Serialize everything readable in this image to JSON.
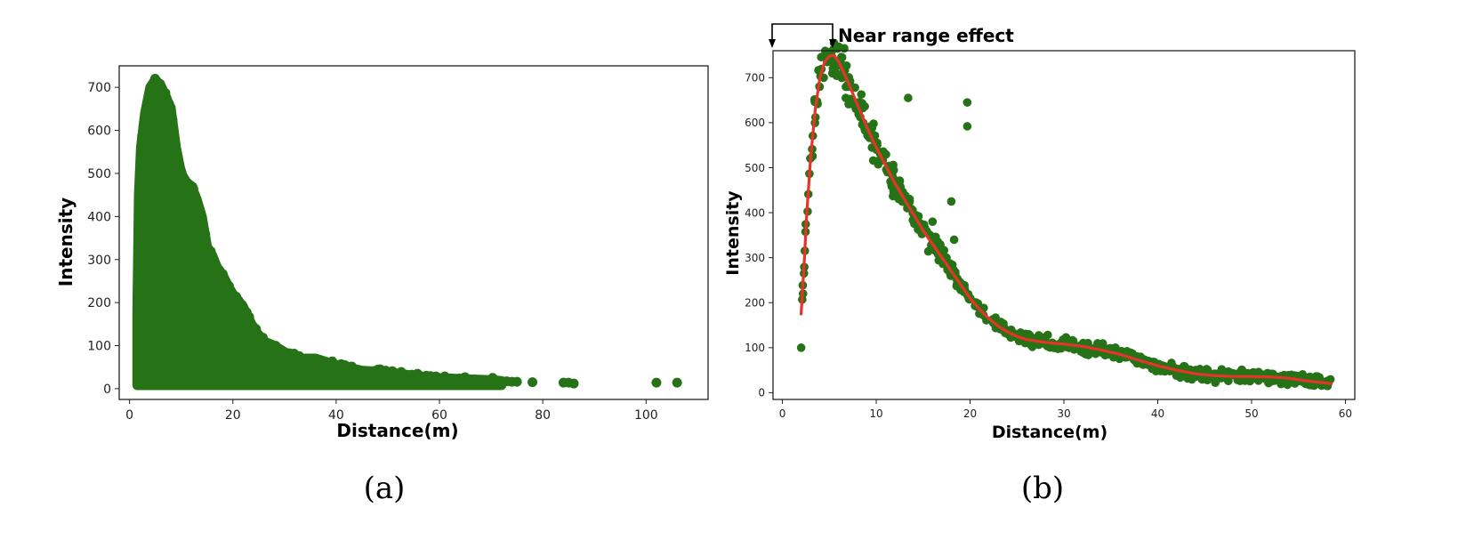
{
  "chart_data": [
    {
      "panel": "a",
      "type": "scatter",
      "caption": "(a)",
      "xlabel": "Distance(m)",
      "ylabel": "Intensity",
      "xlim": [
        -2,
        112
      ],
      "ylim": [
        -25,
        750
      ],
      "xticks": [
        0,
        20,
        40,
        60,
        80,
        100
      ],
      "yticks": [
        0,
        100,
        200,
        300,
        400,
        500,
        600,
        700
      ],
      "marker_color": "#267317",
      "grid": false,
      "dense_envelope": [
        [
          1.5,
          180
        ],
        [
          1.8,
          450
        ],
        [
          2.2,
          560
        ],
        [
          3,
          640
        ],
        [
          4,
          700
        ],
        [
          5,
          718
        ],
        [
          6,
          705
        ],
        [
          7,
          680
        ],
        [
          8,
          650
        ],
        [
          9,
          560
        ],
        [
          10,
          500
        ],
        [
          11,
          480
        ],
        [
          12,
          470
        ],
        [
          13,
          440
        ],
        [
          14,
          400
        ],
        [
          15,
          330
        ],
        [
          16,
          310
        ],
        [
          17,
          280
        ],
        [
          18,
          265
        ],
        [
          19,
          240
        ],
        [
          20,
          220
        ],
        [
          22,
          190
        ],
        [
          24,
          140
        ],
        [
          26,
          110
        ],
        [
          28,
          100
        ],
        [
          30,
          85
        ],
        [
          33,
          70
        ],
        [
          36,
          70
        ],
        [
          40,
          55
        ],
        [
          45,
          42
        ],
        [
          50,
          38
        ],
        [
          55,
          30
        ],
        [
          60,
          25
        ],
        [
          65,
          22
        ],
        [
          70,
          20
        ],
        [
          72,
          18
        ]
      ],
      "isolated_points": [
        [
          73,
          17
        ],
        [
          74,
          16
        ],
        [
          75,
          16
        ],
        [
          78,
          15
        ],
        [
          84,
          14
        ],
        [
          85,
          14
        ],
        [
          86,
          12
        ],
        [
          102,
          14
        ],
        [
          106,
          14
        ]
      ]
    },
    {
      "panel": "b",
      "type": "scatter",
      "caption": "(b)",
      "xlabel": "Distance(m)",
      "ylabel": "Intensity",
      "annotation": "Near range effect",
      "xlim": [
        -1,
        61
      ],
      "ylim": [
        -15,
        760
      ],
      "xticks": [
        0,
        10,
        20,
        30,
        40,
        50,
        60
      ],
      "yticks": [
        0,
        100,
        200,
        300,
        400,
        500,
        600,
        700
      ],
      "marker_color": "#267317",
      "fit_color": "#e8332b",
      "grid": false,
      "fit_curve": [
        [
          2,
          175
        ],
        [
          2.3,
          280
        ],
        [
          2.6,
          400
        ],
        [
          3,
          520
        ],
        [
          3.5,
          630
        ],
        [
          4,
          700
        ],
        [
          4.5,
          735
        ],
        [
          5,
          748
        ],
        [
          5.5,
          750
        ],
        [
          6,
          735
        ],
        [
          7,
          690
        ],
        [
          8,
          640
        ],
        [
          9,
          590
        ],
        [
          10,
          545
        ],
        [
          11,
          505
        ],
        [
          12,
          465
        ],
        [
          13,
          430
        ],
        [
          14,
          395
        ],
        [
          15,
          360
        ],
        [
          16,
          330
        ],
        [
          17,
          300
        ],
        [
          18,
          270
        ],
        [
          19,
          240
        ],
        [
          20,
          210
        ],
        [
          21,
          185
        ],
        [
          22,
          165
        ],
        [
          23,
          148
        ],
        [
          24,
          135
        ],
        [
          25,
          125
        ],
        [
          26,
          118
        ],
        [
          28,
          112
        ],
        [
          30,
          108
        ],
        [
          32,
          103
        ],
        [
          34,
          95
        ],
        [
          36,
          85
        ],
        [
          38,
          72
        ],
        [
          40,
          60
        ],
        [
          42,
          50
        ],
        [
          44,
          42
        ],
        [
          46,
          38
        ],
        [
          48,
          36
        ],
        [
          50,
          36
        ],
        [
          52,
          35
        ],
        [
          54,
          32
        ],
        [
          56,
          26
        ],
        [
          58.5,
          20
        ]
      ],
      "outliers": [
        [
          2,
          100
        ],
        [
          2.2,
          220
        ],
        [
          2.3,
          265
        ],
        [
          13.4,
          655
        ],
        [
          19.7,
          645
        ],
        [
          19.7,
          592
        ],
        [
          18,
          425
        ],
        [
          18.3,
          340
        ],
        [
          16,
          380
        ]
      ]
    }
  ]
}
